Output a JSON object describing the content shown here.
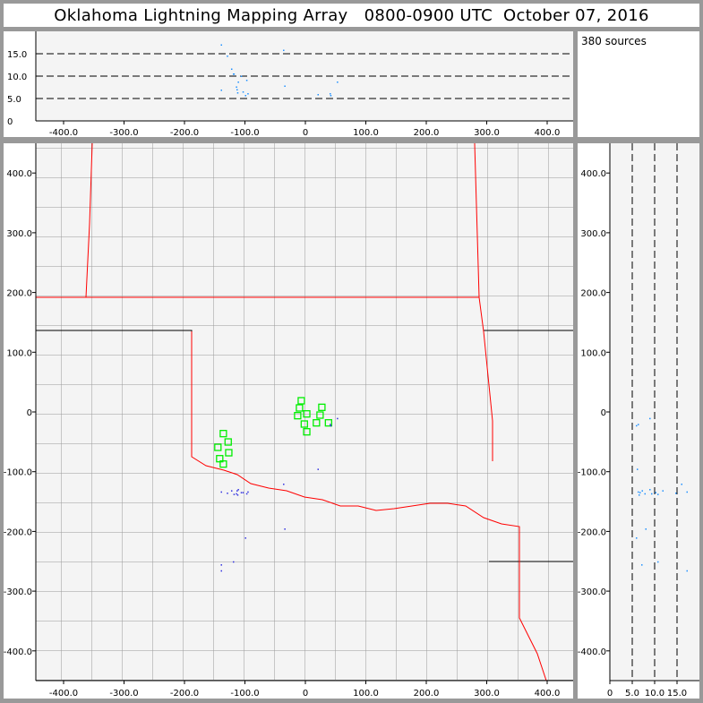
{
  "title": "Oklahoma Lightning Mapping Array   0800-0900 UTC  October 07, 2016",
  "source_count_label": "380 sources",
  "chart_data": {
    "type": "scatter",
    "panels": [
      "altitude-vs-east-west",
      "plan-view",
      "north-south-vs-altitude"
    ],
    "x_ticks": [
      "-400.0",
      "-300.0",
      "-200.0",
      "-100.0",
      "0",
      "100.0",
      "200.0",
      "300.0",
      "400.0"
    ],
    "x_tick_values": [
      -400,
      -300,
      -200,
      -100,
      0,
      100,
      200,
      300,
      400
    ],
    "y_ticks": [
      "400.0",
      "300.0",
      "200.0",
      "100.0",
      "0",
      "-100.0",
      "-200.0",
      "-300.0",
      "-400.0"
    ],
    "y_tick_values": [
      400,
      300,
      200,
      100,
      0,
      -100,
      -200,
      -300,
      -400
    ],
    "z_ticks": [
      "0",
      "5.0",
      "10.0",
      "15.0"
    ],
    "z_tick_values": [
      0,
      5,
      10,
      15
    ],
    "xlim": [
      -450,
      450
    ],
    "ylim": [
      -450,
      450
    ],
    "zlim": [
      0,
      20
    ],
    "grid": "dashed altitude lines at 5, 10, 15",
    "colors": {
      "source": "#1e90ff",
      "station": "#00ee00",
      "state_border": "#ff0000",
      "county": "#999999",
      "panel": "#f4f4f4"
    },
    "stations": [
      [
        -6,
        18
      ],
      [
        -9,
        6
      ],
      [
        -12,
        -7
      ],
      [
        3,
        -4
      ],
      [
        -1,
        -21
      ],
      [
        3,
        -34
      ],
      [
        19,
        -19
      ],
      [
        25,
        -6
      ],
      [
        28,
        7
      ],
      [
        39,
        -19
      ],
      [
        -135,
        -37
      ],
      [
        -127,
        -51
      ],
      [
        -144,
        -60
      ],
      [
        -126,
        -69
      ],
      [
        -141,
        -79
      ],
      [
        -135,
        -88
      ]
    ],
    "sources": [
      [
        -140,
        -133,
        17.1
      ],
      [
        -130,
        -135,
        14.6
      ],
      [
        -123,
        -131,
        11.7
      ],
      [
        -119,
        -137,
        10.6
      ],
      [
        -107,
        -134,
        10.1
      ],
      [
        -112,
        -129,
        8.8
      ],
      [
        -115,
        -136,
        7.7
      ],
      [
        -114,
        -131,
        7.1
      ],
      [
        -113,
        -138,
        6.4
      ],
      [
        -104,
        -134,
        6.6
      ],
      [
        -96,
        -133,
        6.2
      ],
      [
        -98,
        -136,
        9.2
      ],
      [
        -37,
        -120,
        15.9
      ],
      [
        40,
        -20,
        6.2
      ],
      [
        41,
        -22,
        5.8
      ],
      [
        52,
        -10,
        8.8
      ],
      [
        -140,
        -255,
        7.0
      ],
      [
        -120,
        -250,
        10.6
      ],
      [
        -140,
        -265,
        17.1
      ],
      [
        20,
        -95,
        6.0
      ],
      [
        -35,
        -195,
        7.9
      ],
      [
        -100,
        -210,
        5.8
      ]
    ]
  }
}
